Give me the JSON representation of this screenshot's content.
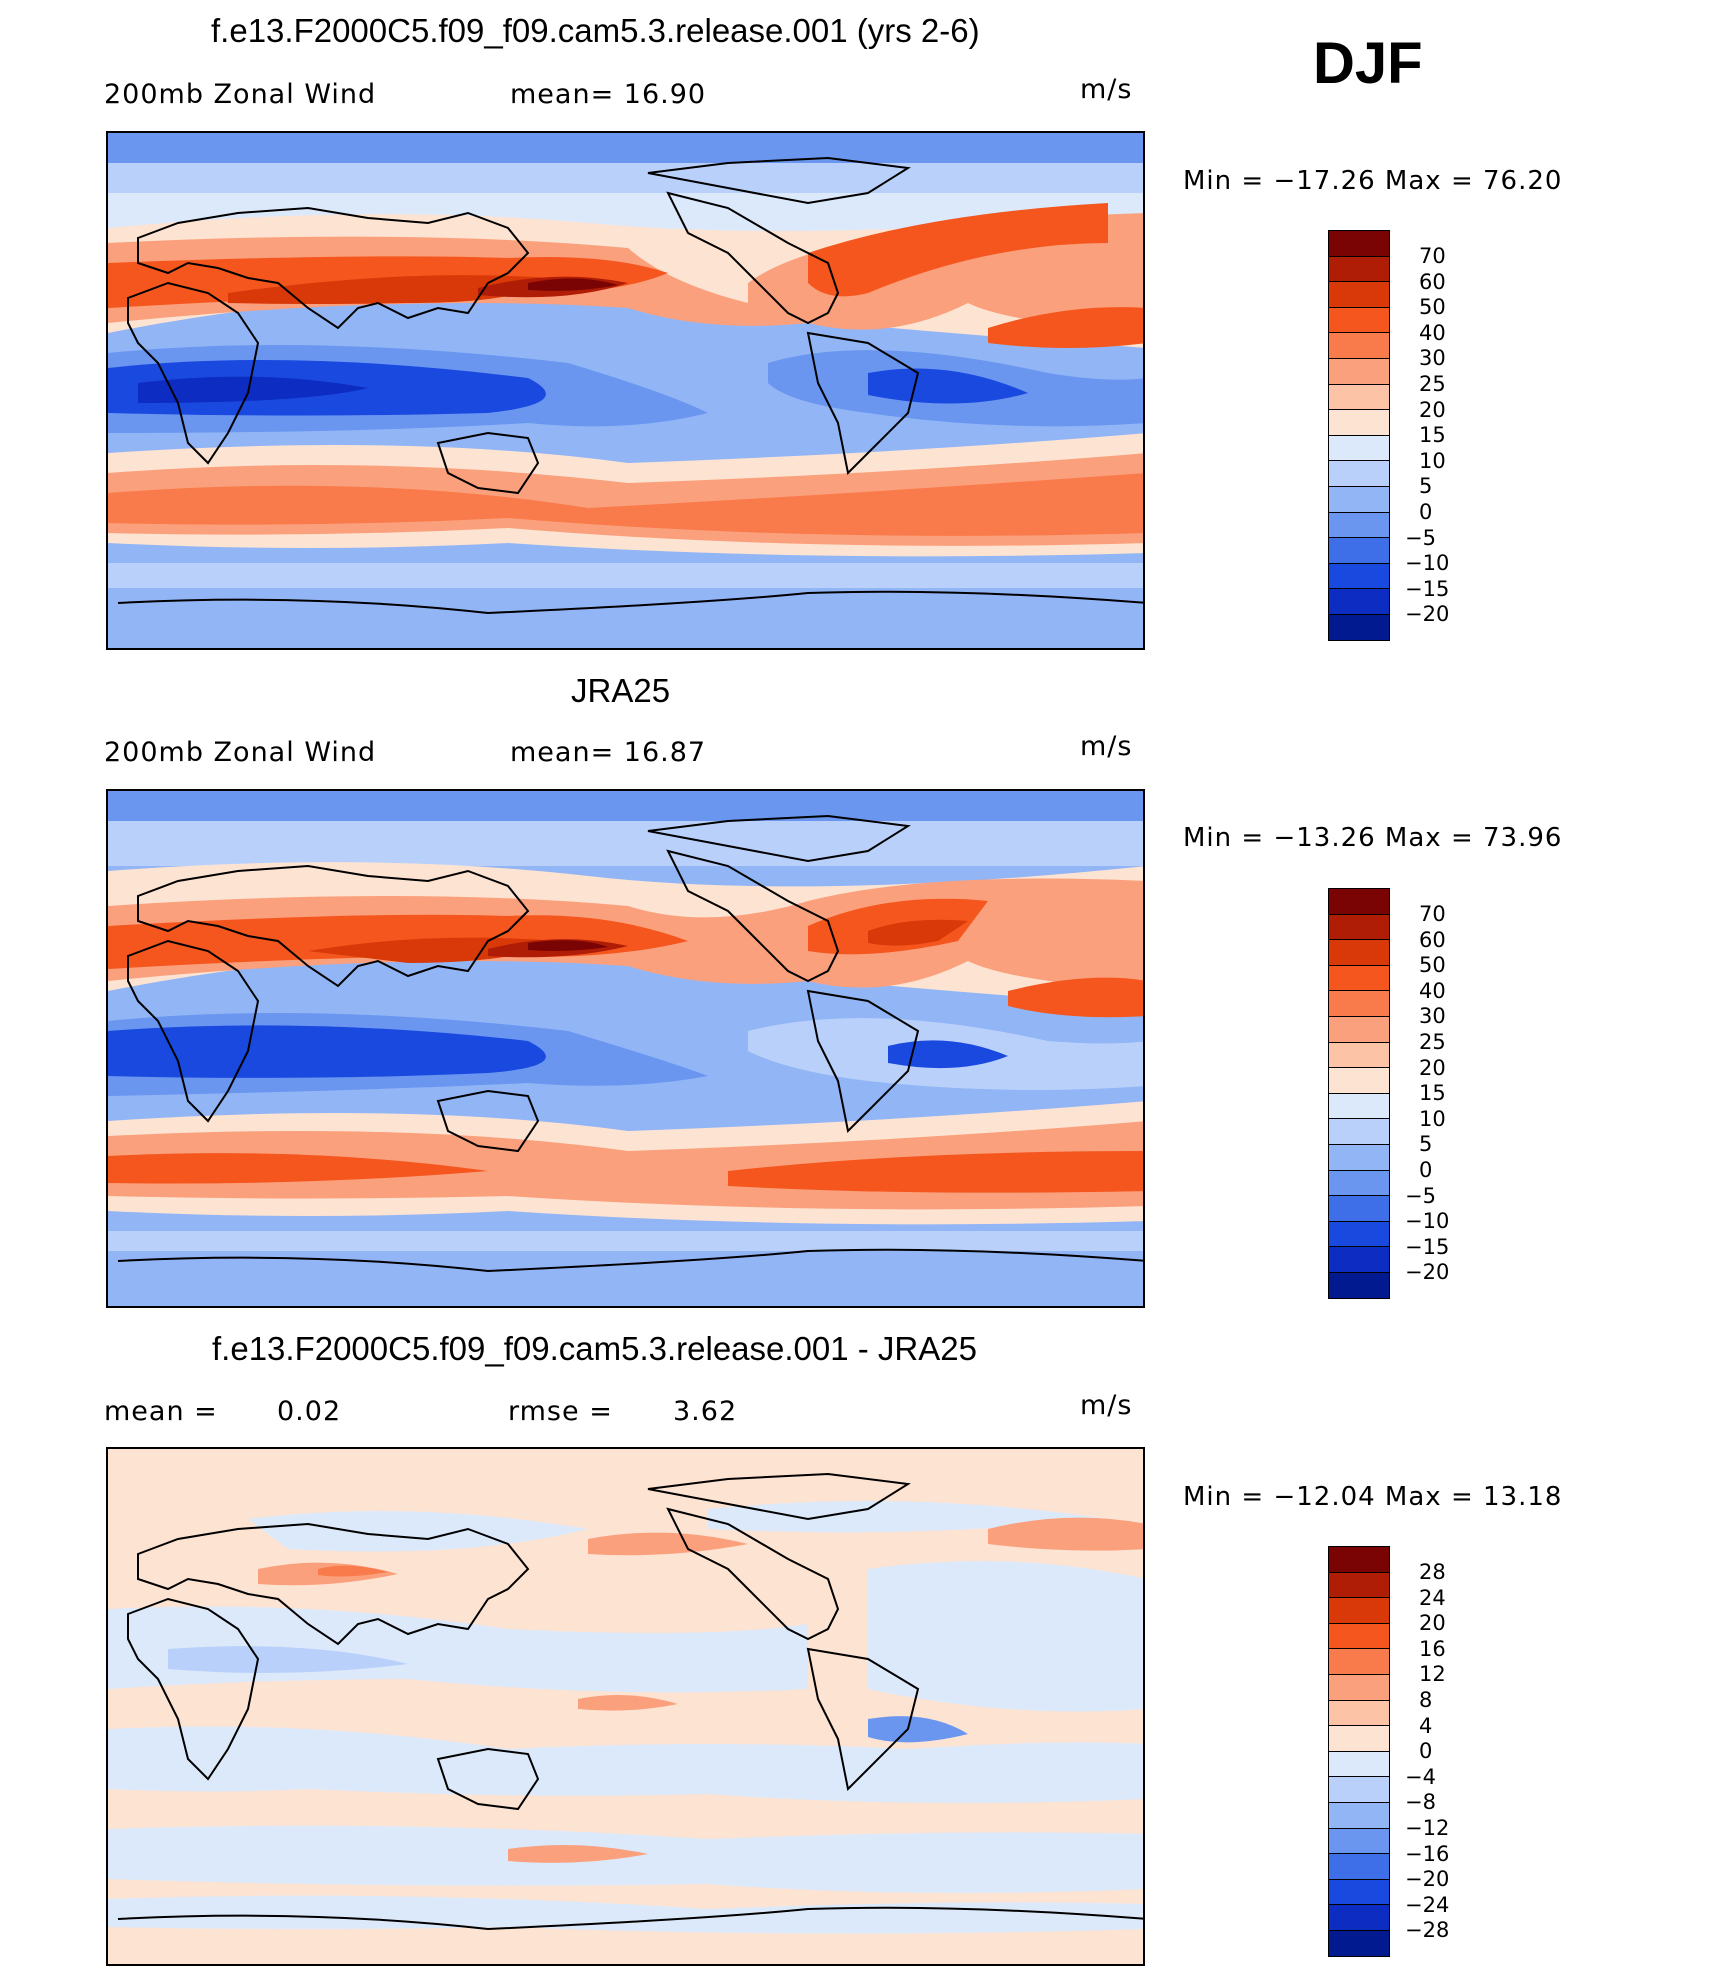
{
  "season": "DJF",
  "units": "m/s",
  "panels": [
    {
      "title": "f.e13.F2000C5.f09_f09.cam5.3.release.001 (yrs 2-6)",
      "left_label": "200mb  Zonal  Wind",
      "right_label": "mean=   16.90",
      "units": "m/s",
      "minmax": "Min  =  −17.26  Max  =    76.20"
    },
    {
      "title": "JRA25",
      "left_label": "200mb  Zonal  Wind",
      "right_label": "mean=   16.87",
      "units": "m/s",
      "minmax": "Min  =  −13.26  Max  =    73.96"
    },
    {
      "title": "f.e13.F2000C5.f09_f09.cam5.3.release.001 - JRA25",
      "left_label": "mean  =",
      "left_value": "0.02",
      "right_label": "rmse  =",
      "right_value": "3.62",
      "units": "m/s",
      "minmax": "Min  =  −12.04  Max  =    13.18"
    }
  ],
  "colorbars": {
    "wind": {
      "labels": [
        "70",
        "60",
        "50",
        "40",
        "30",
        "25",
        "20",
        "15",
        "10",
        "5",
        "0",
        "−5",
        "−10",
        "−15",
        "−20"
      ],
      "colors": [
        "#7a0403",
        "#b01d07",
        "#d93808",
        "#f4561e",
        "#f97a4a",
        "#fba07c",
        "#fcc3a6",
        "#fde3d2",
        "#dce9fb",
        "#b9d1fa",
        "#92b5f6",
        "#6a96f0",
        "#3f6fe8",
        "#1a49e0",
        "#0c2cc2",
        "#021a8f"
      ]
    },
    "diff": {
      "labels": [
        "28",
        "24",
        "20",
        "16",
        "12",
        "8",
        "4",
        "0",
        "−4",
        "−8",
        "−12",
        "−16",
        "−20",
        "−24",
        "−28"
      ],
      "colors": [
        "#7a0403",
        "#b01d07",
        "#d93808",
        "#f4561e",
        "#f97a4a",
        "#fba07c",
        "#fcc3a6",
        "#fde3d2",
        "#dce9fb",
        "#b9d1fa",
        "#92b5f6",
        "#6a96f0",
        "#3f6fe8",
        "#1a49e0",
        "#0c2cc2",
        "#021a8f"
      ]
    }
  }
}
